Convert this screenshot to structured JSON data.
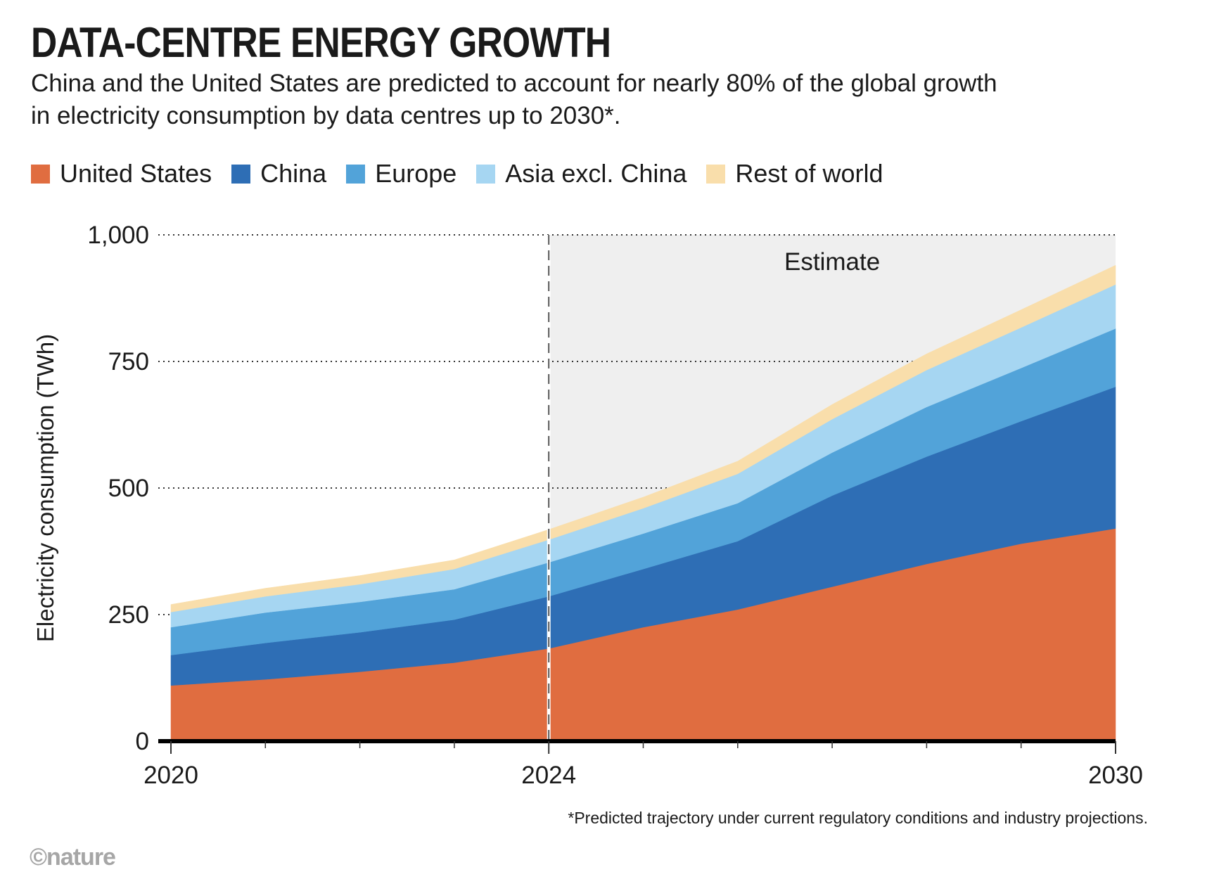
{
  "title": "DATA-CENTRE ENERGY GROWTH",
  "subtitle": "China and the United States are predicted to account for nearly 80% of the global growth in electricity consumption by data centres up to 2030*.",
  "footnote": "*Predicted trajectory under current regulatory conditions and industry projections.",
  "logo": "©nature",
  "chart_data": {
    "type": "area",
    "stacked": true,
    "ylabel": "Electricity consumption (TWh)",
    "xlabel": "",
    "xlim": [
      2020,
      2030
    ],
    "ylim": [
      0,
      1000
    ],
    "x_ticks": [
      2020,
      2024,
      2030
    ],
    "y_ticks": [
      {
        "value": 0,
        "label": "0"
      },
      {
        "value": 250,
        "label": "250"
      },
      {
        "value": 500,
        "label": "500"
      },
      {
        "value": 750,
        "label": "750"
      },
      {
        "value": 1000,
        "label": "1,000"
      }
    ],
    "grid": "dotted horizontal",
    "legend_position": "top-left",
    "annotation": {
      "text": "Estimate",
      "from_x": 2024,
      "to_x": 2030
    },
    "x": [
      2020,
      2021,
      2022,
      2023,
      2024,
      2025,
      2026,
      2027,
      2028,
      2029,
      2030
    ],
    "series": [
      {
        "name": "United States",
        "color": "#e06d40",
        "values": [
          110,
          122,
          137,
          155,
          183,
          225,
          260,
          305,
          350,
          390,
          420
        ]
      },
      {
        "name": "China",
        "color": "#2e6eb5",
        "values": [
          60,
          72,
          78,
          85,
          103,
          115,
          135,
          180,
          212,
          242,
          280
        ]
      },
      {
        "name": "Europe",
        "color": "#52a3d9",
        "values": [
          55,
          60,
          60,
          60,
          67,
          70,
          75,
          85,
          98,
          105,
          115
        ]
      },
      {
        "name": "Asia excl. China",
        "color": "#a6d6f2",
        "values": [
          30,
          32,
          35,
          40,
          45,
          50,
          58,
          66,
          73,
          80,
          87
        ]
      },
      {
        "name": "Rest of world",
        "color": "#f9deab",
        "values": [
          15,
          16,
          17,
          18,
          20,
          22,
          25,
          29,
          32,
          35,
          38
        ]
      }
    ]
  }
}
